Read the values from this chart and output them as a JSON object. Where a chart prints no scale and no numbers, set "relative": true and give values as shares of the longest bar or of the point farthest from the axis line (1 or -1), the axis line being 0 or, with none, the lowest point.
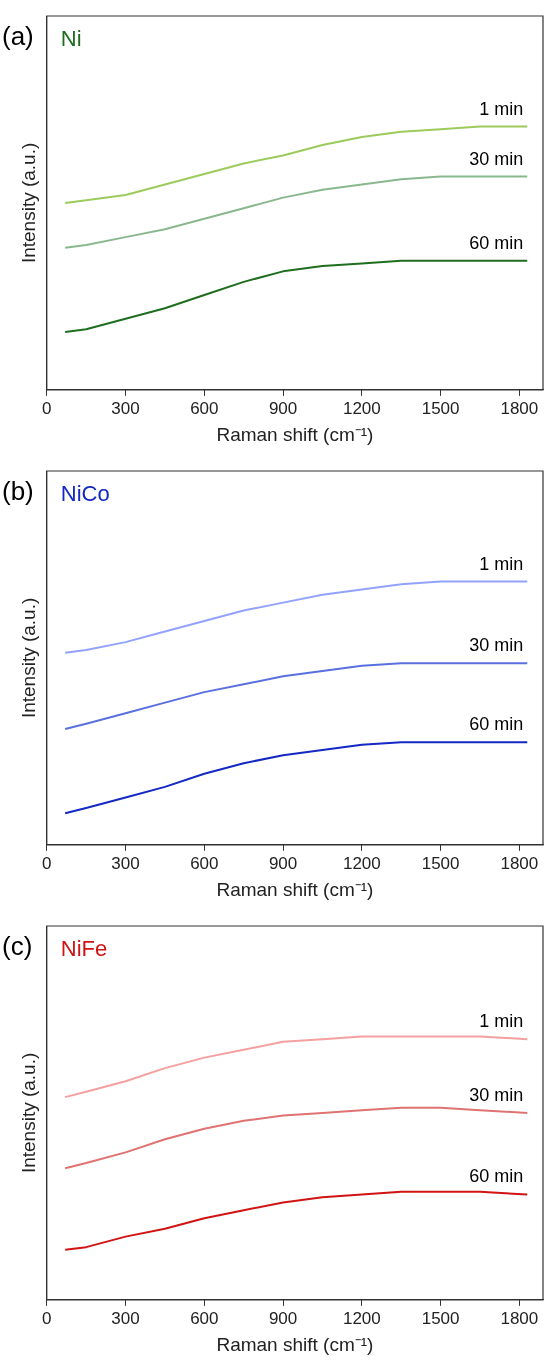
{
  "chart_data": [
    {
      "type": "line",
      "title": "Ni",
      "annotations": [
        "(a)"
      ],
      "xlabel": "Raman shift (cm⁻¹)",
      "ylabel": "Intensity (a.u.)",
      "relative": true,
      "xlim": [
        0,
        1890
      ],
      "xticks": [
        0,
        300,
        600,
        900,
        1200,
        1500,
        1800
      ],
      "x": [
        70,
        150,
        300,
        450,
        600,
        750,
        900,
        1050,
        1200,
        1350,
        1500,
        1650,
        1830
      ],
      "series": [
        {
          "name": "1 min",
          "color": "#9ccb5c",
          "values": [
            0.71,
            0.72,
            0.74,
            0.78,
            0.82,
            0.86,
            0.89,
            0.93,
            0.96,
            0.98,
            0.99,
            1.0,
            1.0
          ]
        },
        {
          "name": "30 min",
          "color": "#8ab88e",
          "values": [
            0.54,
            0.55,
            0.58,
            0.61,
            0.65,
            0.69,
            0.73,
            0.76,
            0.78,
            0.8,
            0.81,
            0.81,
            0.81
          ]
        },
        {
          "name": "60 min",
          "color": "#1f6e1f",
          "values": [
            0.22,
            0.23,
            0.27,
            0.31,
            0.36,
            0.41,
            0.45,
            0.47,
            0.48,
            0.49,
            0.49,
            0.49,
            0.49
          ]
        }
      ]
    },
    {
      "type": "line",
      "title": "NiCo",
      "annotations": [
        "(b)"
      ],
      "xlabel": "Raman shift (cm⁻¹)",
      "ylabel": "Intensity (a.u.)",
      "relative": true,
      "xlim": [
        0,
        1890
      ],
      "xticks": [
        0,
        300,
        600,
        900,
        1200,
        1500,
        1800
      ],
      "x": [
        70,
        150,
        300,
        450,
        600,
        750,
        900,
        1050,
        1200,
        1350,
        1500,
        1650,
        1830
      ],
      "series": [
        {
          "name": "1 min",
          "color": "#94a2ff",
          "values": [
            0.73,
            0.74,
            0.77,
            0.81,
            0.85,
            0.89,
            0.92,
            0.95,
            0.97,
            0.99,
            1.0,
            1.0,
            1.0
          ]
        },
        {
          "name": "30 min",
          "color": "#5a70e0",
          "values": [
            0.44,
            0.46,
            0.5,
            0.54,
            0.58,
            0.61,
            0.64,
            0.66,
            0.68,
            0.69,
            0.69,
            0.69,
            0.69
          ]
        },
        {
          "name": "60 min",
          "color": "#1428c4",
          "values": [
            0.12,
            0.14,
            0.18,
            0.22,
            0.27,
            0.31,
            0.34,
            0.36,
            0.38,
            0.39,
            0.39,
            0.39,
            0.39
          ]
        }
      ]
    },
    {
      "type": "line",
      "title": "NiFe",
      "annotations": [
        "(c)"
      ],
      "xlabel": "Raman shift (cm⁻¹)",
      "ylabel": "Intensity (a.u.)",
      "relative": true,
      "xlim": [
        0,
        1890
      ],
      "xticks": [
        0,
        300,
        600,
        900,
        1200,
        1500,
        1800
      ],
      "x": [
        70,
        150,
        300,
        450,
        600,
        750,
        900,
        1050,
        1200,
        1350,
        1500,
        1650,
        1830
      ],
      "series": [
        {
          "name": "1 min",
          "color": "#f4a0a0",
          "values": [
            0.77,
            0.79,
            0.83,
            0.88,
            0.92,
            0.95,
            0.98,
            0.99,
            1.0,
            1.0,
            1.0,
            1.0,
            0.99
          ]
        },
        {
          "name": "30 min",
          "color": "#e07272",
          "values": [
            0.5,
            0.52,
            0.56,
            0.61,
            0.65,
            0.68,
            0.7,
            0.71,
            0.72,
            0.73,
            0.73,
            0.72,
            0.71
          ]
        },
        {
          "name": "60 min",
          "color": "#d01414",
          "values": [
            0.19,
            0.2,
            0.24,
            0.27,
            0.31,
            0.34,
            0.37,
            0.39,
            0.4,
            0.41,
            0.41,
            0.41,
            0.4
          ]
        }
      ]
    }
  ]
}
